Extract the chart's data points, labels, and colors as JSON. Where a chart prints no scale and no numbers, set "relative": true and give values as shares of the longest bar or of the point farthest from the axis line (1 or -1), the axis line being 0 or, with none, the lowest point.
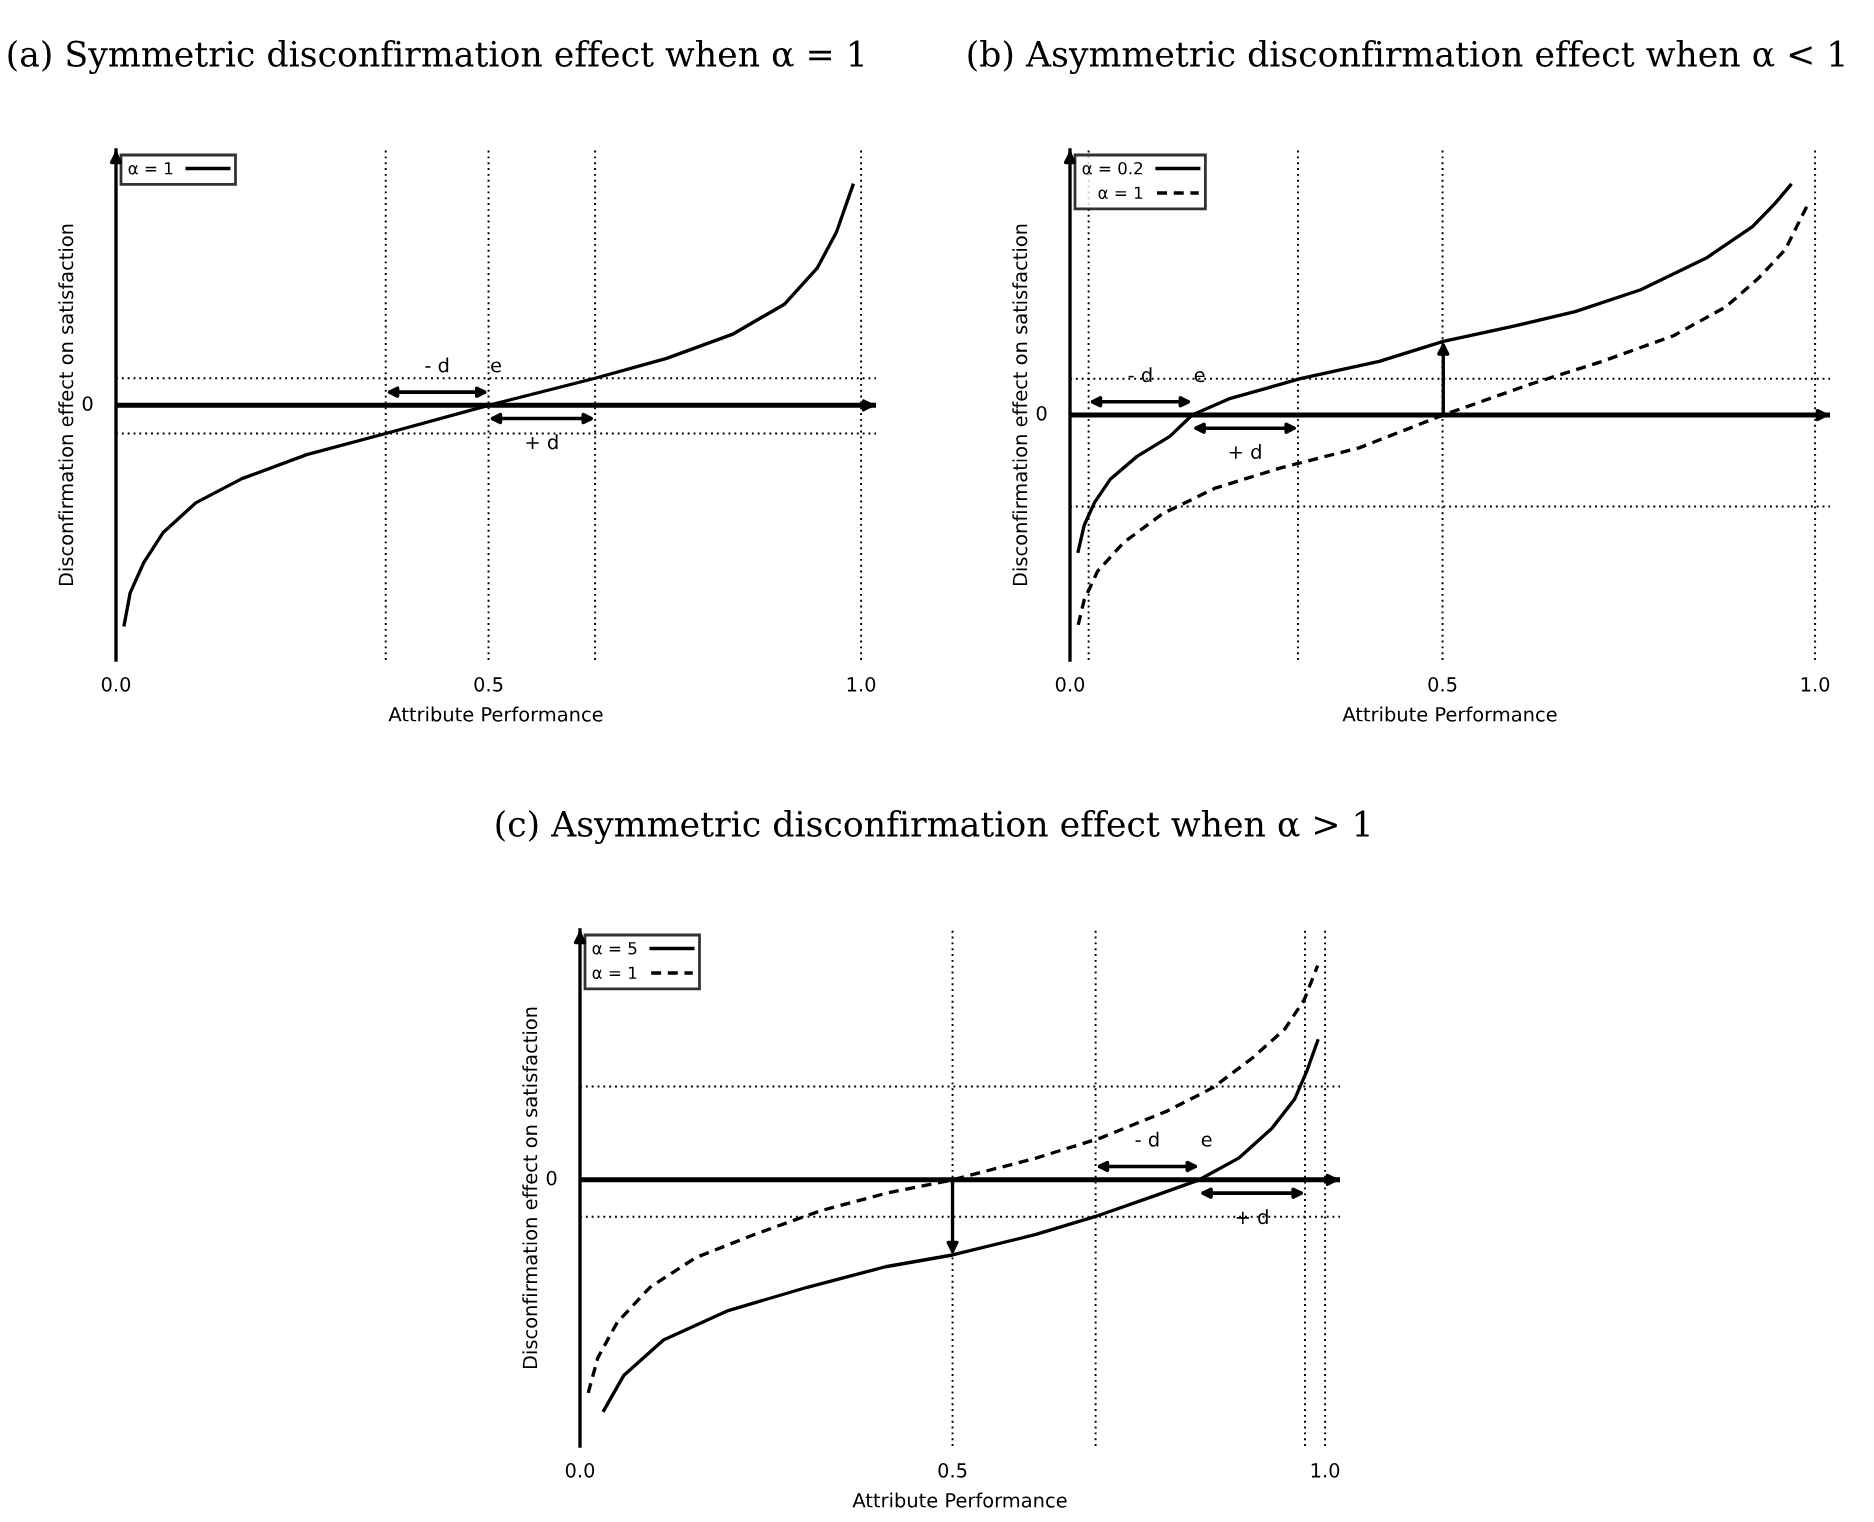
{
  "chart_data": [
    {
      "type": "line",
      "title": "(a) Symmetric disconfirmation effect when α = 1",
      "xlabel": "Attribute Performance",
      "ylabel": "Disconfirmation effect on satisfaction",
      "relative": true,
      "xlim": [
        0,
        1.02
      ],
      "xticks": [
        {
          "value": 0,
          "label": "0.0"
        },
        {
          "value": 0.5,
          "label": "0.5"
        },
        {
          "value": 1,
          "label": "1.0"
        }
      ],
      "series": [
        {
          "name": "α = 1",
          "color": "#000000",
          "line_style": "solid",
          "x": [
            0.011,
            0.019,
            0.037,
            0.063,
            0.107,
            0.169,
            0.256,
            0.362,
            0.5,
            0.643,
            0.739,
            0.827,
            0.897,
            0.941,
            0.967,
            0.989
          ],
          "values": [
            -0.997,
            -0.852,
            -0.716,
            -0.579,
            -0.443,
            -0.333,
            -0.224,
            -0.128,
            0,
            0.123,
            0.213,
            0.322,
            0.459,
            0.623,
            0.787,
            1.0
          ]
        }
      ],
      "ref_lines": [
        {
          "axis": "x",
          "value": 0.5,
          "line_style": "dotted",
          "color": "#000000"
        },
        {
          "axis": "x",
          "value": 1.0,
          "line_style": "dotted",
          "color": "#000000"
        },
        {
          "axis": "x",
          "value": 0.362,
          "line_style": "dotted",
          "color": "#000000"
        },
        {
          "axis": "x",
          "value": 0.643,
          "line_style": "dotted",
          "color": "#000000"
        },
        {
          "axis": "y",
          "value": 0.123,
          "line_style": "dotted",
          "color": "#000000"
        },
        {
          "axis": "y",
          "value": -0.128,
          "line_style": "dotted",
          "color": "#000000"
        }
      ],
      "annotations": [
        "0",
        "- d",
        "e",
        "+ d"
      ],
      "legend": "top left"
    },
    {
      "type": "line",
      "title": "(b) Asymmetric disconfirmation effect when α < 1",
      "xlabel": "Attribute Performance",
      "ylabel": "Disconfirmation effect on satisfaction",
      "relative": true,
      "xlim": [
        0,
        1.02
      ],
      "xticks": [
        {
          "value": 0,
          "label": "0.0"
        },
        {
          "value": 0.5,
          "label": "0.5"
        },
        {
          "value": 1,
          "label": "1.0"
        }
      ],
      "series": [
        {
          "name": "α = 0.2",
          "color": "#000000",
          "line_style": "solid",
          "x": [
            0.011,
            0.019,
            0.033,
            0.054,
            0.09,
            0.134,
            0.164,
            0.213,
            0.309,
            0.415,
            0.501,
            0.591,
            0.678,
            0.766,
            0.854,
            0.916,
            0.946,
            0.967
          ],
          "values": [
            -0.593,
            -0.48,
            -0.38,
            -0.28,
            -0.18,
            -0.093,
            0,
            0.07,
            0.158,
            0.233,
            0.32,
            0.383,
            0.45,
            0.545,
            0.683,
            0.82,
            0.92,
            1.0
          ]
        },
        {
          "name": "α = 1",
          "color": "#000000",
          "line_style": "dashed",
          "x": [
            0.011,
            0.019,
            0.037,
            0.072,
            0.124,
            0.195,
            0.283,
            0.388,
            0.501,
            0.617,
            0.714,
            0.81,
            0.88,
            0.924,
            0.96,
            0.99
          ],
          "values": [
            -0.913,
            -0.805,
            -0.68,
            -0.555,
            -0.43,
            -0.318,
            -0.23,
            -0.143,
            0,
            0.133,
            0.233,
            0.345,
            0.47,
            0.595,
            0.72,
            0.915
          ]
        }
      ],
      "ref_lines": [
        {
          "axis": "x",
          "value": 0.5,
          "line_style": "dotted",
          "color": "#000000"
        },
        {
          "axis": "x",
          "value": 1.0,
          "line_style": "dotted",
          "color": "#000000"
        },
        {
          "axis": "x",
          "value": 0.025,
          "line_style": "dotted",
          "color": "#000000"
        },
        {
          "axis": "x",
          "value": 0.306,
          "line_style": "dotted",
          "color": "#000000"
        },
        {
          "axis": "y",
          "value": 0.158,
          "line_style": "dotted",
          "color": "#000000"
        },
        {
          "axis": "y",
          "value": -0.398,
          "line_style": "dotted",
          "color": "#000000"
        }
      ],
      "annotations": [
        "0",
        "- d",
        "e",
        "+ d"
      ],
      "legend": "top left"
    },
    {
      "type": "line",
      "title": "(c) Asymmetric disconfirmation effect when α > 1",
      "xlabel": "Attribute Performance",
      "ylabel": "Disconfirmation effect on satisfaction",
      "relative": true,
      "xlim": [
        0,
        1.02
      ],
      "xticks": [
        {
          "value": 0,
          "label": "0.0"
        },
        {
          "value": 0.5,
          "label": "0.5"
        },
        {
          "value": 1,
          "label": "1.0"
        }
      ],
      "series": [
        {
          "name": "α = 5",
          "color": "#000000",
          "line_style": "solid",
          "x": [
            0.032,
            0.059,
            0.112,
            0.199,
            0.305,
            0.41,
            0.5,
            0.612,
            0.691,
            0.77,
            0.831,
            0.884,
            0.928,
            0.959,
            0.976,
            0.99
          ],
          "values": [
            -1.0,
            -0.847,
            -0.695,
            -0.567,
            -0.466,
            -0.377,
            -0.326,
            -0.237,
            -0.16,
            -0.071,
            0,
            0.094,
            0.221,
            0.349,
            0.476,
            0.603
          ]
        },
        {
          "name": "α = 1",
          "color": "#000000",
          "line_style": "dashed",
          "x": [
            0.011,
            0.024,
            0.05,
            0.094,
            0.155,
            0.234,
            0.322,
            0.41,
            0.5,
            0.612,
            0.7,
            0.788,
            0.849,
            0.902,
            0.946,
            0.972,
            0.99
          ],
          "values": [
            -0.924,
            -0.771,
            -0.618,
            -0.466,
            -0.338,
            -0.237,
            -0.135,
            -0.059,
            0,
            0.094,
            0.183,
            0.298,
            0.399,
            0.527,
            0.654,
            0.781,
            0.929
          ]
        }
      ],
      "ref_lines": [
        {
          "axis": "x",
          "value": 0.5,
          "line_style": "dotted",
          "color": "#000000"
        },
        {
          "axis": "x",
          "value": 1.0,
          "line_style": "dotted",
          "color": "#000000"
        },
        {
          "axis": "x",
          "value": 0.692,
          "line_style": "dotted",
          "color": "#000000"
        },
        {
          "axis": "x",
          "value": 0.973,
          "line_style": "dotted",
          "color": "#000000"
        },
        {
          "axis": "y",
          "value": 0.405,
          "line_style": "dotted",
          "color": "#000000"
        },
        {
          "axis": "y",
          "value": -0.16,
          "line_style": "dotted",
          "color": "#000000"
        }
      ],
      "annotations": [
        "0",
        "- d",
        "e",
        "+ d"
      ],
      "legend": "top left"
    }
  ]
}
